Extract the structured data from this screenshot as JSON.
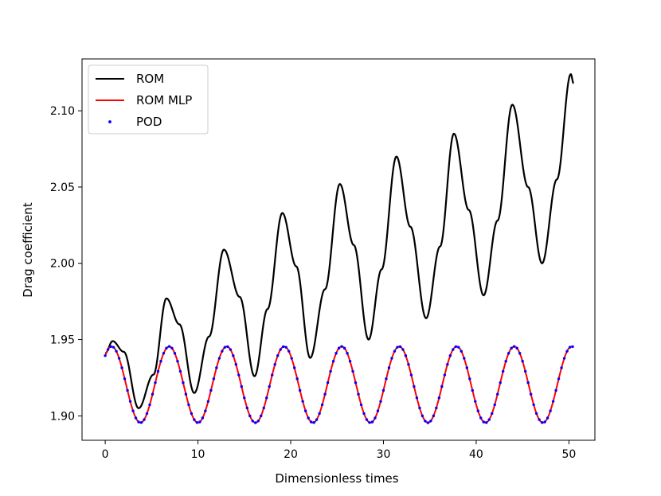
{
  "chart_data": {
    "type": "line",
    "title": "",
    "xlabel": "Dimensionless times",
    "ylabel": "Drag coefficient",
    "xlim": [
      -2.5,
      52.8
    ],
    "ylim": [
      1.884,
      2.134
    ],
    "xticks": [
      "0",
      "10",
      "20",
      "30",
      "40",
      "50"
    ],
    "yticks": [
      "1.90",
      "1.95",
      "2.00",
      "2.05",
      "2.10"
    ],
    "grid": false,
    "legend_position": "top-left",
    "series": [
      {
        "name": "ROM",
        "style": "line",
        "color": "#000000",
        "x": [
          0,
          0.8,
          2.0,
          3.6,
          5.2,
          6.6,
          8.0,
          9.6,
          11.2,
          12.8,
          14.5,
          16.1,
          17.5,
          19.1,
          20.6,
          22.1,
          23.7,
          25.3,
          26.8,
          28.4,
          29.8,
          31.4,
          32.9,
          34.6,
          36.1,
          37.6,
          39.2,
          40.8,
          42.3,
          43.9,
          45.6,
          47.1,
          48.7,
          50.2,
          50.5
        ],
        "y": [
          1.941,
          1.949,
          1.942,
          1.905,
          1.927,
          1.977,
          1.96,
          1.915,
          1.952,
          2.009,
          1.978,
          1.926,
          1.97,
          2.033,
          1.998,
          1.938,
          1.983,
          2.052,
          2.012,
          1.95,
          1.996,
          2.07,
          2.024,
          1.964,
          2.011,
          2.085,
          2.035,
          1.979,
          2.028,
          2.104,
          2.05,
          2.0,
          2.055,
          2.124,
          2.118
        ]
      },
      {
        "name": "ROM MLP",
        "style": "line",
        "color": "#ff0000",
        "start": 0,
        "end": 50.5,
        "mean": 1.9205,
        "amplitude": 0.025,
        "period": 6.2,
        "peak_at": 0.7
      },
      {
        "name": "POD",
        "style": "points",
        "color": "#0000ff",
        "start": 0,
        "end": 50.5,
        "step": 0.3,
        "mean": 1.9205,
        "amplitude": 0.025,
        "period": 6.2,
        "peak_at": 0.7
      }
    ]
  }
}
